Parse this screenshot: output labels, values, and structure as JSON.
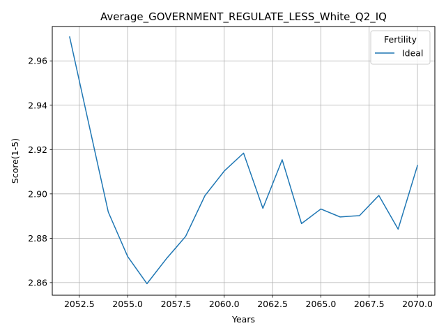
{
  "chart_data": {
    "type": "line",
    "title": "Average_GOVERNMENT_REGULATE_LESS_White_Q2_IQ",
    "xlabel": "Years",
    "ylabel": "Score(1-5)",
    "xlim": [
      2051.1,
      2070.9
    ],
    "ylim": [
      2.8543,
      2.9755
    ],
    "x_ticks": [
      2052.5,
      2055.0,
      2057.5,
      2060.0,
      2062.5,
      2065.0,
      2067.5,
      2070.0
    ],
    "x_tick_labels": [
      "2052.5",
      "2055.0",
      "2057.5",
      "2060.0",
      "2062.5",
      "2065.0",
      "2067.5",
      "2070.0"
    ],
    "y_ticks": [
      2.86,
      2.88,
      2.9,
      2.92,
      2.94,
      2.96
    ],
    "y_tick_labels": [
      "2.86",
      "2.88",
      "2.90",
      "2.92",
      "2.94",
      "2.96"
    ],
    "grid": true,
    "legend": {
      "title": "Fertility",
      "placement": "top-right"
    },
    "series": [
      {
        "name": "Ideal",
        "color": "#1f77b4",
        "x": [
          2052,
          2053,
          2054,
          2055,
          2056,
          2057,
          2058,
          2059,
          2060,
          2061,
          2062,
          2063,
          2064,
          2065,
          2066,
          2067,
          2068,
          2069,
          2070
        ],
        "values": [
          2.9708,
          2.9312,
          2.8918,
          2.8718,
          2.8595,
          2.8707,
          2.8808,
          2.8992,
          2.9103,
          2.9184,
          2.8935,
          2.9154,
          2.8866,
          2.8932,
          2.8896,
          2.8902,
          2.8993,
          2.8841,
          2.9128
        ]
      }
    ]
  }
}
